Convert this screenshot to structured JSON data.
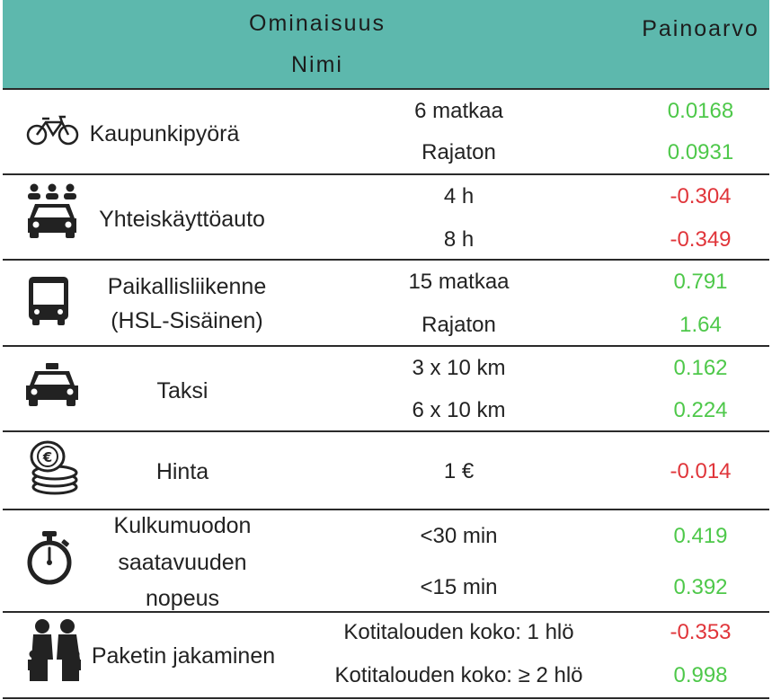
{
  "header": {
    "col1_line1": "Ominaisuus",
    "col1_line2": "Nimi",
    "col2": "Painoarvo"
  },
  "colors": {
    "header_bg": "#5db8ad",
    "positive": "#4ec84a",
    "negative": "#e0353a"
  },
  "rows": [
    {
      "name_lines": [
        "Kaupunkipyörä"
      ],
      "icon": "bicycle-icon",
      "levels": [
        {
          "label": "6 matkaa",
          "value": "0.0168",
          "sign": "pos"
        },
        {
          "label": "Rajaton",
          "value": "0.0931",
          "sign": "pos"
        }
      ]
    },
    {
      "name_lines": [
        "Yhteiskäyttöauto"
      ],
      "icon": "carsharing-icon",
      "levels": [
        {
          "label": "4 h",
          "value": "-0.304",
          "sign": "neg"
        },
        {
          "label": "8 h",
          "value": "-0.349",
          "sign": "neg"
        }
      ]
    },
    {
      "name_lines": [
        "Paikallisliikenne",
        "(HSL-Sisäinen)"
      ],
      "icon": "bus-icon",
      "levels": [
        {
          "label": "15 matkaa",
          "value": "0.791",
          "sign": "pos"
        },
        {
          "label": "Rajaton",
          "value": "1.64",
          "sign": "pos"
        }
      ]
    },
    {
      "name_lines": [
        "Taksi"
      ],
      "icon": "taxi-icon",
      "levels": [
        {
          "label": "3 x 10 km",
          "value": "0.162",
          "sign": "pos"
        },
        {
          "label": "6 x 10 km",
          "value": "0.224",
          "sign": "pos"
        }
      ]
    },
    {
      "name_lines": [
        "Hinta"
      ],
      "icon": "coins-icon",
      "levels": [
        {
          "label": "1 €",
          "value": "-0.014",
          "sign": "neg"
        }
      ]
    },
    {
      "name_lines": [
        "Kulkumuodon",
        "saatavuuden",
        "nopeus"
      ],
      "icon": "stopwatch-icon",
      "levels": [
        {
          "label": "<30 min",
          "value": "0.419",
          "sign": "pos"
        },
        {
          "label": "<15 min",
          "value": "0.392",
          "sign": "pos"
        }
      ]
    },
    {
      "name_lines": [
        "Paketin jakaminen"
      ],
      "icon": "family-icon",
      "levels": [
        {
          "label": "Kotitalouden koko: 1 hlö",
          "value": "-0.353",
          "sign": "neg"
        },
        {
          "label": "Kotitalouden koko: ≥ 2 hlö",
          "value": "0.998",
          "sign": "pos"
        }
      ]
    }
  ]
}
